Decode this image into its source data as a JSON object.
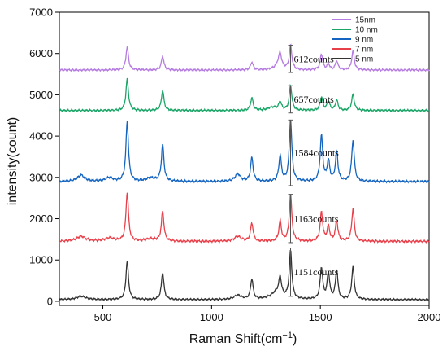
{
  "chart_data": {
    "type": "line",
    "xlabel": "Raman Shift(cm",
    "xlabel_sup": "−1",
    "xlabel_tail": ")",
    "ylabel": "intensity(count)",
    "xlim": [
      300,
      2000
    ],
    "ylim": [
      -100,
      7000
    ],
    "xticks": [
      500,
      1000,
      1500,
      2000
    ],
    "yticks": [
      0,
      1000,
      2000,
      3000,
      4000,
      5000,
      6000,
      7000
    ],
    "legend_position": "top-right",
    "peaks": [
      612,
      775,
      1185,
      1315,
      1363,
      1505,
      1537,
      1575,
      1650
    ],
    "series": [
      {
        "name": "15nm",
        "color": "#b57be0",
        "baseline": 5600,
        "noise": 25,
        "intensities": [
          560,
          330,
          190,
          260,
          580,
          380,
          140,
          220,
          460
        ],
        "extra": [
          [
            1310,
            180,
            18
          ]
        ],
        "annotation": {
          "text": "612counts",
          "x": 1363,
          "bottom": 5540,
          "top": 6200
        }
      },
      {
        "name": "10 nm",
        "color": "#1aa567",
        "baseline": 4620,
        "noise": 25,
        "intensities": [
          760,
          480,
          300,
          200,
          600,
          320,
          230,
          250,
          390
        ],
        "extra": [
          [
            1280,
            80,
            25
          ]
        ],
        "annotation": {
          "text": "657counts",
          "x": 1363,
          "bottom": 4560,
          "top": 5220
        }
      },
      {
        "name": "9 nm",
        "color": "#1565c0",
        "baseline": 2900,
        "noise": 28,
        "intensities": [
          1450,
          880,
          570,
          620,
          1480,
          1100,
          480,
          700,
          1000
        ],
        "extra": [
          [
            400,
            150,
            20
          ],
          [
            720,
            80,
            25
          ],
          [
            1120,
            180,
            15
          ],
          [
            530,
            90,
            20
          ]
        ],
        "annotation": {
          "text": "1584counts",
          "x": 1363,
          "bottom": 2800,
          "top": 4390
        }
      },
      {
        "name": "7 nm",
        "color": "#e8404a",
        "baseline": 1450,
        "noise": 28,
        "intensities": [
          1180,
          720,
          440,
          480,
          1120,
          700,
          350,
          480,
          780
        ],
        "extra": [
          [
            400,
            120,
            25
          ],
          [
            530,
            80,
            25
          ],
          [
            1120,
            120,
            18
          ],
          [
            720,
            60,
            25
          ]
        ],
        "annotation": {
          "text": "1163counts",
          "x": 1363,
          "bottom": 1420,
          "top": 2590
        }
      },
      {
        "name": "5 nm",
        "color": "#333333",
        "baseline": 40,
        "noise": 22,
        "intensities": [
          930,
          650,
          480,
          420,
          1150,
          750,
          630,
          680,
          780
        ],
        "extra": [
          [
            1300,
            180,
            30
          ],
          [
            400,
            80,
            25
          ],
          [
            1120,
            100,
            20
          ]
        ],
        "annotation": {
          "text": "1151counts",
          "x": 1363,
          "bottom": 120,
          "top": 1290
        }
      }
    ]
  }
}
